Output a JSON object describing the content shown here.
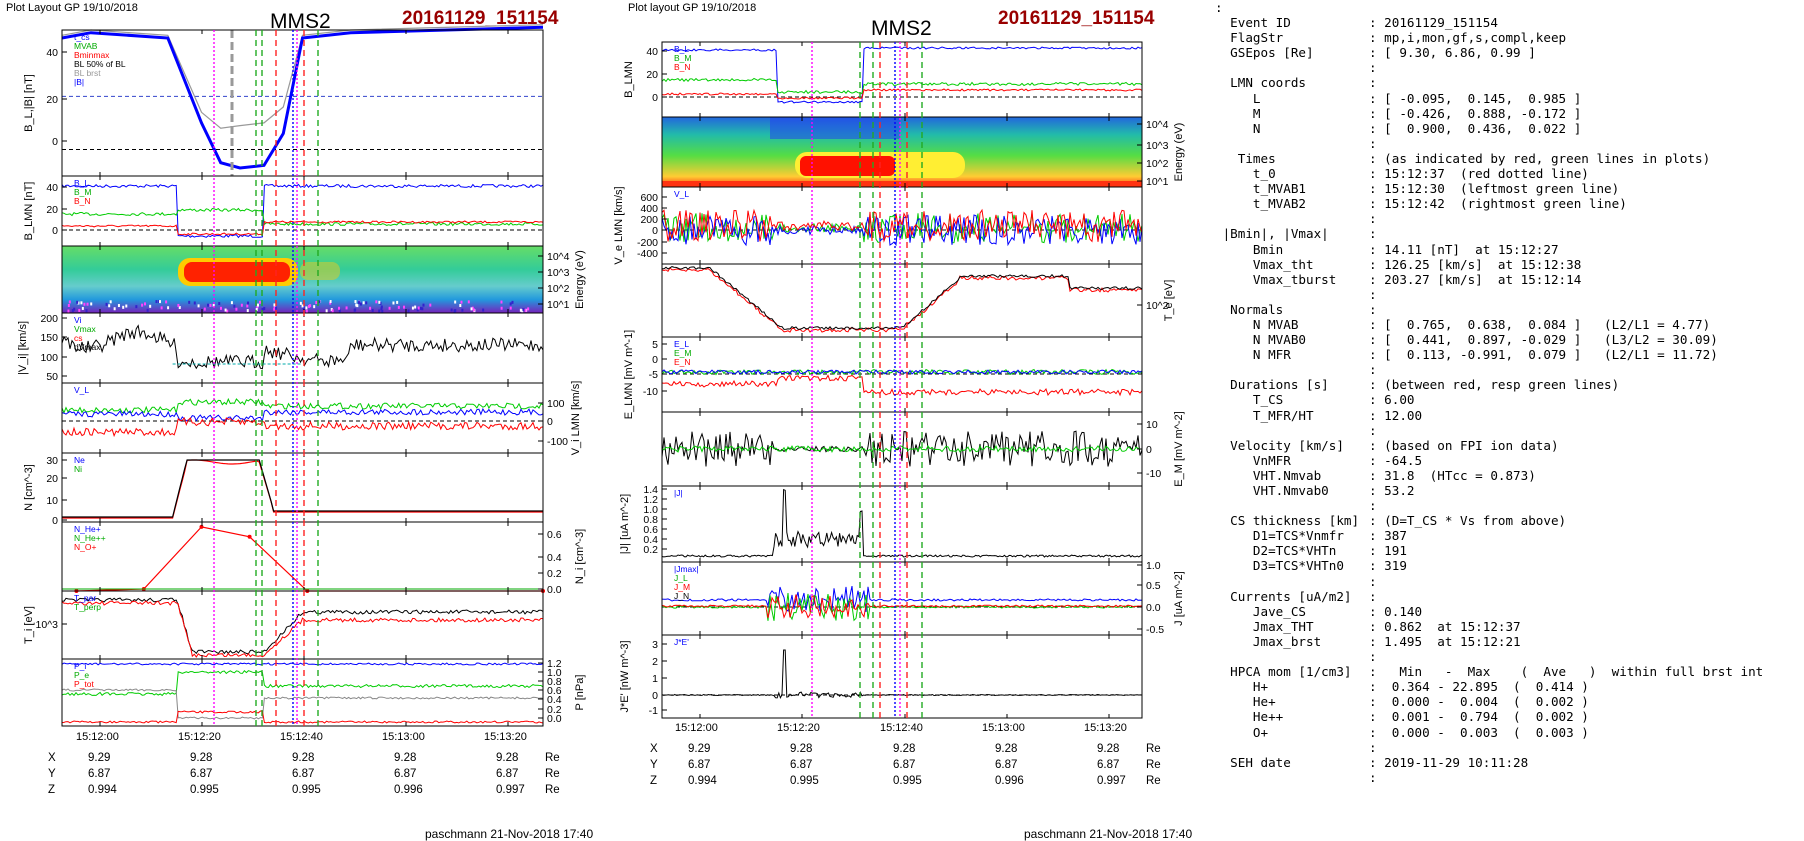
{
  "left_header": {
    "plot_layout": "Plot Layout GP 19/10/2018",
    "spacecraft": "MMS2",
    "event": "20161129_151154"
  },
  "right_header": {
    "plot_layout": "Plot layout GP 19/10/2018",
    "spacecraft": "MMS2",
    "event": "20161129_151154"
  },
  "time_ticks": [
    "15:12:00",
    "15:12:20",
    "15:12:40",
    "15:13:00",
    "15:13:20"
  ],
  "positions": {
    "unit": "Re",
    "rows": [
      {
        "label": "X",
        "values": [
          "9.29",
          "9.28",
          "9.28",
          "9.28",
          "9.28"
        ]
      },
      {
        "label": "Y",
        "values": [
          "6.87",
          "6.87",
          "6.87",
          "6.87",
          "6.87"
        ]
      },
      {
        "label": "Z",
        "values": [
          "0.994",
          "0.995",
          "0.995",
          "0.996",
          "0.997"
        ]
      }
    ]
  },
  "footer": {
    "left": "paschmann 21-Nov-2018 17:40",
    "right": "paschmann 21-Nov-2018 17:40"
  },
  "colors": {
    "event_red": "#990000",
    "blue": "#0000ff",
    "green": "#00cc00",
    "red": "#ff0000",
    "magenta": "#ff00ff",
    "dash_green": "#22aa22"
  },
  "chart_data": [
    {
      "type": "line",
      "panel": "L1",
      "ylabel": "B_L,|B| [nT]",
      "ylim": [
        -10,
        45
      ],
      "yticks": [
        "40",
        "20",
        "0"
      ],
      "legend": [
        "t_cs",
        "MVAB",
        "Bminmax",
        "BL 50% of BL",
        "BL brst",
        "|B|"
      ],
      "series": [
        {
          "name": "BL brst",
          "color": "#0000ff",
          "x": [
            0,
            0.06,
            0.22,
            0.29,
            0.33,
            0.37,
            0.42,
            0.46,
            0.5,
            0.6,
            1
          ],
          "y": [
            42,
            44,
            42,
            10,
            -5,
            -7,
            -6,
            6,
            42,
            44,
            46
          ]
        },
        {
          "name": "|B|",
          "color": "#999999",
          "x": [
            0,
            0.06,
            0.22,
            0.29,
            0.33,
            0.37,
            0.42,
            0.46,
            0.5,
            0.6,
            1
          ],
          "y": [
            43,
            45,
            43,
            14,
            8,
            9,
            10,
            16,
            43,
            45,
            47
          ]
        }
      ]
    },
    {
      "type": "line",
      "panel": "L2",
      "ylabel": "B_LMN [nT]",
      "ylim": [
        -10,
        45
      ],
      "yticks": [
        "40",
        "20",
        "0"
      ],
      "legend": [
        "B_L",
        "B_M",
        "B_N"
      ],
      "series": [
        {
          "name": "B_L",
          "color": "#0000ff"
        },
        {
          "name": "B_M",
          "color": "#00cc00"
        },
        {
          "name": "B_N",
          "color": "#ff0000"
        }
      ]
    },
    {
      "type": "heatmap",
      "panel": "L3",
      "ylabel": "Energy (eV)",
      "yticks": [
        "10^4",
        "10^3",
        "10^2",
        "10^1"
      ]
    },
    {
      "type": "line",
      "panel": "L4",
      "ylabel": "|V_i| [km/s]",
      "ylim": [
        0,
        200
      ],
      "yticks": [
        "200",
        "150",
        "100",
        "50"
      ],
      "legend": [
        "Vi",
        "Vmax",
        "cs",
        "dVmax"
      ]
    },
    {
      "type": "line",
      "panel": "L5",
      "ylabel": "V_i LMN [km/s]",
      "ylim": [
        -150,
        150
      ],
      "yticks": [
        "100",
        "0",
        "-100"
      ],
      "legend": [
        "V_L"
      ]
    },
    {
      "type": "line",
      "panel": "L6",
      "ylabel": "N [cm^-3]",
      "ylim": [
        0,
        35
      ],
      "yticks": [
        "30",
        "20",
        "10",
        "0"
      ],
      "legend": [
        "Ne",
        "Ni"
      ]
    },
    {
      "type": "line",
      "panel": "L7",
      "ylabel": "N_i [cm^-3]",
      "ylim": [
        0,
        0.7
      ],
      "yticks": [
        "0.6",
        "0.4",
        "0.2",
        "0.0"
      ],
      "legend": [
        "N_He+",
        "N_He++",
        "N_O+"
      ],
      "series": [
        {
          "name": "N_He++",
          "color": "#ff0000",
          "x": [
            0.03,
            0.17,
            0.29,
            0.39,
            0.51,
            1
          ],
          "y": [
            0,
            0.02,
            0.65,
            0.55,
            0,
            0
          ]
        }
      ]
    },
    {
      "type": "line",
      "panel": "L8",
      "ylabel": "T_i [eV]",
      "yticks": [
        "10^3"
      ],
      "legend": [
        "T_par",
        "T_perp"
      ]
    },
    {
      "type": "line",
      "panel": "L9",
      "ylabel": "P [nPa]",
      "ylim": [
        0,
        1.25
      ],
      "yticks": [
        "1.2",
        "1.0",
        "0.8",
        "0.6",
        "0.4",
        "0.2",
        "0.0"
      ],
      "legend": [
        "P_i",
        "P_e",
        "P_tot"
      ]
    },
    {
      "type": "line",
      "panel": "R1",
      "ylabel": "B_LMN",
      "ylim": [
        -10,
        45
      ],
      "yticks": [
        "40",
        "20",
        "0"
      ],
      "legend": [
        "B_L",
        "B_M",
        "B_N"
      ]
    },
    {
      "type": "heatmap",
      "panel": "R2",
      "ylabel": "Energy (eV)",
      "yticks": [
        "10^4",
        "10^3",
        "10^2",
        "10^1"
      ]
    },
    {
      "type": "line",
      "panel": "R3",
      "ylabel": "V_e LMN [km/s]",
      "ylim": [
        -450,
        650
      ],
      "yticks": [
        "600",
        "400",
        "200",
        "0",
        "-200",
        "-400"
      ],
      "legend": [
        "V_L"
      ]
    },
    {
      "type": "line",
      "panel": "R4",
      "ylabel": "T_e [eV]",
      "yticks": [
        "10^2"
      ]
    },
    {
      "type": "line",
      "panel": "R5",
      "ylabel": "E_LMN [mV m^-1]",
      "ylim": [
        -12,
        8
      ],
      "yticks": [
        "5",
        "0",
        "-5",
        "-10"
      ],
      "legend": [
        "E_L",
        "E_M",
        "E_N"
      ]
    },
    {
      "type": "line",
      "panel": "R6",
      "ylabel": "E_M [mV m^-2]",
      "ylim": [
        -12,
        12
      ],
      "yticks": [
        "10",
        "0",
        "-10"
      ]
    },
    {
      "type": "line",
      "panel": "R7",
      "ylabel": "|J| [uA m^-2]",
      "ylim": [
        0,
        1.45
      ],
      "yticks": [
        "1.4",
        "1.2",
        "1.0",
        "0.8",
        "0.6",
        "0.4",
        "0.2"
      ],
      "legend": [
        "|J|"
      ]
    },
    {
      "type": "line",
      "panel": "R8",
      "ylabel": "J [uA m^-2]",
      "ylim": [
        -0.7,
        1.1
      ],
      "yticks": [
        "1.0",
        "0.5",
        "0.0",
        "-0.5"
      ],
      "legend": [
        "|Jmax|",
        "J_L",
        "J_M",
        "J_N"
      ]
    },
    {
      "type": "line",
      "panel": "R9",
      "ylabel": "J*E' [nW m^-3]",
      "ylim": [
        -1.5,
        3.5
      ],
      "yticks": [
        "3",
        "2",
        "1",
        "0",
        "-1"
      ],
      "legend": [
        "J*E'"
      ]
    }
  ],
  "summary": [
    {
      "k": ":",
      "v": ""
    },
    {
      "k": "  Event ID",
      "v": ": 20161129_151154"
    },
    {
      "k": "  FlagStr",
      "v": ": mp,i,mon,gf,s,compl,keep"
    },
    {
      "k": "  GSEpos [Re]",
      "v": ": [ 9.30, 6.86, 0.99 ]"
    },
    {
      "k": "",
      "v": ":"
    },
    {
      "k": "  LMN coords",
      "v": ":"
    },
    {
      "k": "     L",
      "v": ": [ -0.095,  0.145,  0.985 ]"
    },
    {
      "k": "     M",
      "v": ": [ -0.426,  0.888, -0.172 ]"
    },
    {
      "k": "     N",
      "v": ": [  0.900,  0.436,  0.022 ]"
    },
    {
      "k": "",
      "v": ":"
    },
    {
      "k": "   Times",
      "v": ": (as indicated by red, green lines in plots)"
    },
    {
      "k": "     t_0",
      "v": ": 15:12:37  (red dotted line)"
    },
    {
      "k": "     t_MVAB1",
      "v": ": 15:12:30  (leftmost green line)"
    },
    {
      "k": "     t_MVAB2",
      "v": ": 15:12:42  (rightmost green line)"
    },
    {
      "k": "",
      "v": ":"
    },
    {
      "k": " |Bmin|, |Vmax|",
      "v": ":"
    },
    {
      "k": "     Bmin",
      "v": ": 14.11 [nT]  at 15:12:27"
    },
    {
      "k": "     Vmax_tht",
      "v": ": 126.25 [km/s]  at 15:12:38"
    },
    {
      "k": "     Vmax_tburst",
      "v": ": 203.27 [km/s]  at 15:12:14"
    },
    {
      "k": "",
      "v": ":"
    },
    {
      "k": "  Normals",
      "v": ":"
    },
    {
      "k": "     N MVAB",
      "v": ": [  0.765,  0.638,  0.084 ]   (L2/L1 = 4.77)"
    },
    {
      "k": "     N MVAB0",
      "v": ": [  0.441,  0.897, -0.029 ]   (L3/L2 = 30.09)"
    },
    {
      "k": "     N MFR",
      "v": ": [  0.113, -0.991,  0.079 ]   (L2/L1 = 11.72)"
    },
    {
      "k": "",
      "v": ":"
    },
    {
      "k": "  Durations [s]",
      "v": ": (between red, resp green lines)"
    },
    {
      "k": "     T_CS",
      "v": ": 6.00"
    },
    {
      "k": "     T_MFR/HT",
      "v": ": 12.00"
    },
    {
      "k": "",
      "v": ":"
    },
    {
      "k": "  Velocity [km/s]",
      "v": ": (based on FPI ion data)"
    },
    {
      "k": "     VnMFR",
      "v": ": -64.5"
    },
    {
      "k": "     VHT.Nmvab",
      "v": ": 31.8  (HTcc = 0.873)"
    },
    {
      "k": "     VHT.Nmvab0",
      "v": ": 53.2"
    },
    {
      "k": "",
      "v": ":"
    },
    {
      "k": "  CS thickness [km]",
      "v": ": (D=T_CS * Vs from above)"
    },
    {
      "k": "     D1=TCS*Vnmfr",
      "v": ": 387"
    },
    {
      "k": "     D2=TCS*VHTn",
      "v": ": 191"
    },
    {
      "k": "     D3=TCS*VHTn0",
      "v": ": 319"
    },
    {
      "k": "",
      "v": ":"
    },
    {
      "k": "  Currents [uA/m2]",
      "v": ":"
    },
    {
      "k": "     Jave_CS",
      "v": ": 0.140"
    },
    {
      "k": "     Jmax_THT",
      "v": ": 0.862  at 15:12:37"
    },
    {
      "k": "     Jmax_brst",
      "v": ": 1.495  at 15:12:21"
    },
    {
      "k": "",
      "v": ":"
    },
    {
      "k": "  HPCA mom [1/cm3]",
      "v": ":   Min   -  Max    (  Ave   )  within full brst int"
    },
    {
      "k": "     H+",
      "v": ":  0.364 - 22.895  (  0.414 )"
    },
    {
      "k": "     He+",
      "v": ":  0.000 -  0.004  (  0.002 )"
    },
    {
      "k": "     He++",
      "v": ":  0.001 -  0.794  (  0.002 )"
    },
    {
      "k": "     O+",
      "v": ":  0.000 -  0.003  (  0.003 )"
    },
    {
      "k": "",
      "v": ":"
    },
    {
      "k": "  SEH date",
      "v": ": 2019-11-29 10:11:28"
    },
    {
      "k": "",
      "v": ":"
    }
  ]
}
